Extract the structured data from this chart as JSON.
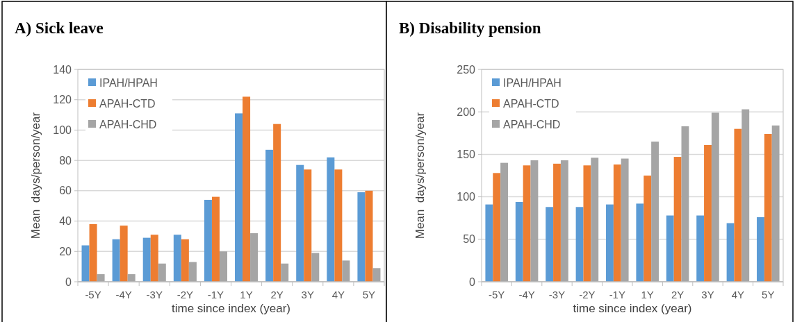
{
  "chart_data": [
    {
      "type": "bar",
      "title": "A) Sick leave",
      "xlabel": "time since index (year)",
      "ylabel": "Mean  days/person/year",
      "categories": [
        "-5Y",
        "-4Y",
        "-3Y",
        "-2Y",
        "-1Y",
        "1Y",
        "2Y",
        "3Y",
        "4Y",
        "5Y"
      ],
      "ylim": [
        0,
        140
      ],
      "yticks": [
        0,
        20,
        40,
        60,
        80,
        100,
        120,
        140
      ],
      "grid": "y",
      "legend": "top left",
      "series": [
        {
          "name": "IPAH/HPAH",
          "color": "#5b9bd5",
          "values": [
            24,
            28,
            29,
            31,
            54,
            111,
            87,
            77,
            82,
            59
          ]
        },
        {
          "name": "APAH-CTD",
          "color": "#ed7d31",
          "values": [
            38,
            37,
            31,
            28,
            56,
            122,
            104,
            74,
            74,
            60
          ]
        },
        {
          "name": "APAH-CHD",
          "color": "#a5a5a5",
          "values": [
            5,
            5,
            12,
            13,
            20,
            32,
            12,
            19,
            14,
            9
          ]
        }
      ]
    },
    {
      "type": "bar",
      "title": "B) Disability pension",
      "xlabel": "time since index (year)",
      "ylabel": "Mean  days/person/year",
      "categories": [
        "-5Y",
        "-4Y",
        "-3Y",
        "-2Y",
        "-1Y",
        "1Y",
        "2Y",
        "3Y",
        "4Y",
        "5Y"
      ],
      "ylim": [
        0,
        250
      ],
      "yticks": [
        0,
        50,
        100,
        150,
        200,
        250
      ],
      "grid": "y",
      "legend": "top left",
      "series": [
        {
          "name": "IPAH/HPAH",
          "color": "#5b9bd5",
          "values": [
            91,
            94,
            88,
            88,
            91,
            92,
            78,
            78,
            69,
            76
          ]
        },
        {
          "name": "APAH-CTD",
          "color": "#ed7d31",
          "values": [
            128,
            137,
            139,
            137,
            138,
            125,
            147,
            161,
            180,
            174
          ]
        },
        {
          "name": "APAH-CHD",
          "color": "#a5a5a5",
          "values": [
            140,
            143,
            143,
            146,
            145,
            165,
            183,
            199,
            203,
            184
          ]
        }
      ]
    }
  ]
}
